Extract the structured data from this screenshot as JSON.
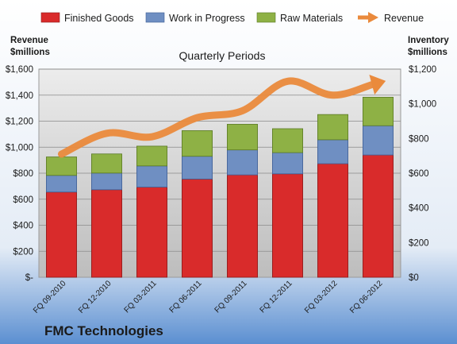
{
  "chart_data": {
    "type": "bar",
    "subtype": "stacked bar with line on secondary axis",
    "title": "Quarterly Periods",
    "footer": "FMC Technologies",
    "left_axis": {
      "label_line1": "Revenue",
      "label_line2": "$millions",
      "ylim": [
        0,
        1600
      ],
      "ticks": [
        "$-",
        "$200",
        "$400",
        "$600",
        "$800",
        "$1,000",
        "$1,200",
        "$1,400",
        "$1,600"
      ]
    },
    "right_axis": {
      "label_line1": "Inventory",
      "label_line2": "$millions",
      "ylim": [
        0,
        1200
      ],
      "ticks": [
        "$0",
        "$200",
        "$400",
        "$600",
        "$800",
        "$1,000",
        "$1,200"
      ]
    },
    "grid": true,
    "legend_position": "top",
    "categories": [
      "FQ 09-2010",
      "FQ 12-2010",
      "FQ 03-2011",
      "FQ 06-2011",
      "FQ 09-2011",
      "FQ 12-2011",
      "FQ 03-2012",
      "FQ 06-2012"
    ],
    "series": [
      {
        "name": "Finished Goods",
        "kind": "bar",
        "axis": "left",
        "color": "#d92b2b",
        "values": [
          655,
          673,
          693,
          755,
          787,
          795,
          873,
          940
        ]
      },
      {
        "name": "Work in Progress",
        "kind": "bar",
        "axis": "left",
        "color": "#6f8fc2",
        "values": [
          128,
          128,
          163,
          175,
          192,
          163,
          184,
          225
        ]
      },
      {
        "name": "Raw Materials",
        "kind": "bar",
        "axis": "left",
        "color": "#8eb145",
        "values": [
          142,
          147,
          152,
          197,
          197,
          184,
          194,
          219
        ]
      },
      {
        "name": "Revenue",
        "kind": "line",
        "axis": "right",
        "color": "#ea8a3c",
        "values": [
          710,
          830,
          810,
          920,
          960,
          1130,
          1050,
          1120
        ]
      }
    ]
  }
}
